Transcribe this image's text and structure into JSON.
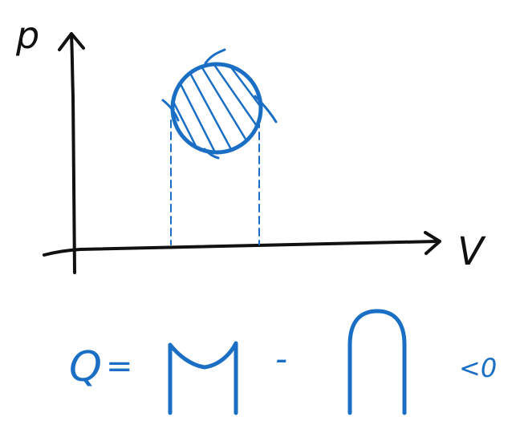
{
  "axes": {
    "y_label": "p",
    "x_label": "V"
  },
  "equation": {
    "lhs": "Q",
    "equals": "=",
    "minus": "-",
    "relation": "<0"
  },
  "colors": {
    "axes": "#111111",
    "ink": "#1a6fc4"
  }
}
